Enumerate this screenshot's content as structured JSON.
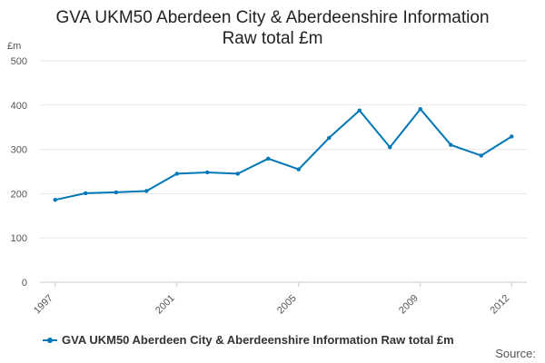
{
  "title": "GVA UKM50 Aberdeen City & Aberdeenshire Information\nRaw total £m",
  "source_label": "Source:",
  "chart_data": {
    "type": "line",
    "title": "GVA UKM50 Aberdeen City & Aberdeenshire Information Raw total £m",
    "ylabel": "£m",
    "xlabel": "",
    "x": [
      1997,
      1998,
      1999,
      2000,
      2001,
      2002,
      2003,
      2004,
      2005,
      2006,
      2007,
      2008,
      2009,
      2010,
      2011,
      2012
    ],
    "x_tick_labels": [
      "1997",
      "2001",
      "2005",
      "2009",
      "2012"
    ],
    "x_ticks": [
      1997,
      2001,
      2005,
      2009,
      2012
    ],
    "y_ticks": [
      0,
      100,
      200,
      300,
      400,
      500
    ],
    "ylim": [
      0,
      500
    ],
    "grid": "horizontal",
    "legend_position": "bottom-left",
    "series": [
      {
        "name": "GVA UKM50 Aberdeen City & Aberdeenshire Information Raw total £m",
        "color": "#0077b6",
        "values": [
          186,
          201,
          203,
          206,
          245,
          248,
          245,
          279,
          255,
          326,
          388,
          305,
          391,
          310,
          286,
          329
        ]
      }
    ]
  }
}
